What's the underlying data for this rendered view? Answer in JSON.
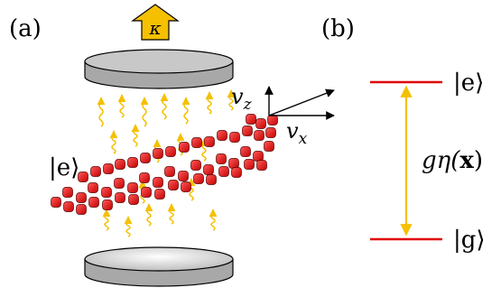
{
  "panel_a": {
    "label": "(a)",
    "decay_symbol": "κ",
    "state_label": "|e⟩",
    "velocity_z": {
      "base": "v",
      "sub": "z"
    },
    "velocity_x": {
      "base": "v",
      "sub": "x"
    }
  },
  "panel_b": {
    "label": "(b)",
    "excited_state": "|e⟩",
    "ground_state": "|g⟩",
    "coupling": {
      "pre": "g",
      "mid": "η(",
      "bold": "x",
      "post": ")"
    }
  },
  "colors": {
    "atom": "#e8141c",
    "photon": "#f5c000",
    "level": "#e00000",
    "arrow_gold": "#f5c000",
    "mirror_fill": "#a8a8a8",
    "mirror_top": "#c8c8c8"
  }
}
